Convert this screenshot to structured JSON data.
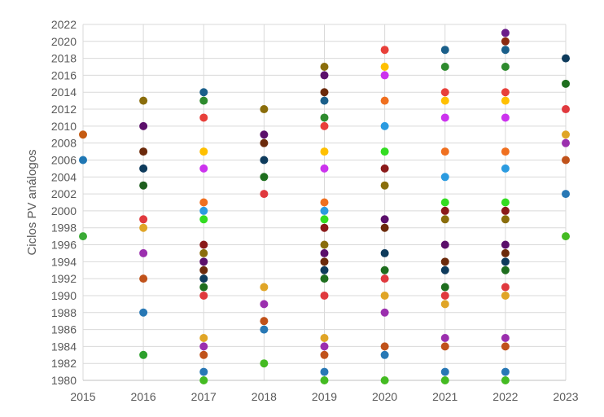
{
  "chart_data": {
    "type": "scatter",
    "title": "",
    "xlabel": "",
    "ylabel": "Ciclos PV análogos",
    "xlim": [
      2015,
      2023
    ],
    "ylim": [
      1980,
      2022
    ],
    "x_ticks": [
      "2015",
      "2016",
      "2017",
      "2018",
      "2019",
      "2020",
      "2021",
      "2022",
      "2023"
    ],
    "y_ticks": [
      "1980",
      "1982",
      "1984",
      "1986",
      "1988",
      "1990",
      "1992",
      "1994",
      "1996",
      "1998",
      "2000",
      "2002",
      "2004",
      "2006",
      "2008",
      "2010",
      "2012",
      "2014",
      "2016",
      "2018",
      "2020",
      "2022"
    ],
    "grid": true,
    "points": [
      {
        "x": 2015,
        "y": 2009,
        "color": "#c55a11"
      },
      {
        "x": 2015,
        "y": 2006,
        "color": "#1f77b4"
      },
      {
        "x": 2015,
        "y": 1997,
        "color": "#3aaa35"
      },
      {
        "x": 2016,
        "y": 2013,
        "color": "#8a6d0b"
      },
      {
        "x": 2016,
        "y": 2010,
        "color": "#5b0f6b"
      },
      {
        "x": 2016,
        "y": 2007,
        "color": "#6b2a0b"
      },
      {
        "x": 2016,
        "y": 2005,
        "color": "#0e3b5c"
      },
      {
        "x": 2016,
        "y": 2003,
        "color": "#1e5e1e"
      },
      {
        "x": 2016,
        "y": 1999,
        "color": "#e0393e"
      },
      {
        "x": 2016,
        "y": 1998,
        "color": "#e0a526"
      },
      {
        "x": 2016,
        "y": 1995,
        "color": "#9b2fae"
      },
      {
        "x": 2016,
        "y": 1992,
        "color": "#c0521a"
      },
      {
        "x": 2016,
        "y": 1988,
        "color": "#2878b5"
      },
      {
        "x": 2016,
        "y": 1983,
        "color": "#2ca02c"
      },
      {
        "x": 2017,
        "y": 2014,
        "color": "#1a5f8a"
      },
      {
        "x": 2017,
        "y": 2013,
        "color": "#2e8b2e"
      },
      {
        "x": 2017,
        "y": 2011,
        "color": "#e8403a"
      },
      {
        "x": 2017,
        "y": 2007,
        "color": "#ffc000"
      },
      {
        "x": 2017,
        "y": 2005,
        "color": "#cc33ee"
      },
      {
        "x": 2017,
        "y": 2001,
        "color": "#f07020"
      },
      {
        "x": 2017,
        "y": 2000,
        "color": "#2b9be0"
      },
      {
        "x": 2017,
        "y": 1999,
        "color": "#33dd22"
      },
      {
        "x": 2017,
        "y": 1996,
        "color": "#8b1a1a"
      },
      {
        "x": 2017,
        "y": 1995,
        "color": "#8a6d0b"
      },
      {
        "x": 2017,
        "y": 1994,
        "color": "#5b0f6b"
      },
      {
        "x": 2017,
        "y": 1993,
        "color": "#6b2a0b"
      },
      {
        "x": 2017,
        "y": 1992,
        "color": "#0e3b5c"
      },
      {
        "x": 2017,
        "y": 1991,
        "color": "#1e6e1e"
      },
      {
        "x": 2017,
        "y": 1990,
        "color": "#e0393e"
      },
      {
        "x": 2017,
        "y": 1985,
        "color": "#e0a526"
      },
      {
        "x": 2017,
        "y": 1984,
        "color": "#9b2fae"
      },
      {
        "x": 2017,
        "y": 1983,
        "color": "#c0521a"
      },
      {
        "x": 2017,
        "y": 1981,
        "color": "#2878b5"
      },
      {
        "x": 2017,
        "y": 1980,
        "color": "#44bb22"
      },
      {
        "x": 2018,
        "y": 2012,
        "color": "#8a6d0b"
      },
      {
        "x": 2018,
        "y": 2009,
        "color": "#5b0f6b"
      },
      {
        "x": 2018,
        "y": 2008,
        "color": "#6b2a0b"
      },
      {
        "x": 2018,
        "y": 2006,
        "color": "#0e3b5c"
      },
      {
        "x": 2018,
        "y": 2004,
        "color": "#1e6e1e"
      },
      {
        "x": 2018,
        "y": 2002,
        "color": "#e0393e"
      },
      {
        "x": 2018,
        "y": 1991,
        "color": "#e0a526"
      },
      {
        "x": 2018,
        "y": 1989,
        "color": "#9b2fae"
      },
      {
        "x": 2018,
        "y": 1987,
        "color": "#c0521a"
      },
      {
        "x": 2018,
        "y": 1986,
        "color": "#2878b5"
      },
      {
        "x": 2018,
        "y": 1982,
        "color": "#44bb22"
      },
      {
        "x": 2019,
        "y": 2017,
        "color": "#8a6d0b"
      },
      {
        "x": 2019,
        "y": 2016,
        "color": "#5b0f6b"
      },
      {
        "x": 2019,
        "y": 2014,
        "color": "#6b2a0b"
      },
      {
        "x": 2019,
        "y": 2013,
        "color": "#1a5f8a"
      },
      {
        "x": 2019,
        "y": 2011,
        "color": "#2e8b2e"
      },
      {
        "x": 2019,
        "y": 2010,
        "color": "#e8403a"
      },
      {
        "x": 2019,
        "y": 2007,
        "color": "#ffc000"
      },
      {
        "x": 2019,
        "y": 2005,
        "color": "#cc33ee"
      },
      {
        "x": 2019,
        "y": 2001,
        "color": "#f07020"
      },
      {
        "x": 2019,
        "y": 2000,
        "color": "#2b9be0"
      },
      {
        "x": 2019,
        "y": 1999,
        "color": "#33dd22"
      },
      {
        "x": 2019,
        "y": 1998,
        "color": "#8b1a1a"
      },
      {
        "x": 2019,
        "y": 1996,
        "color": "#8a6d0b"
      },
      {
        "x": 2019,
        "y": 1995,
        "color": "#5b0f6b"
      },
      {
        "x": 2019,
        "y": 1994,
        "color": "#6b2a0b"
      },
      {
        "x": 2019,
        "y": 1993,
        "color": "#0e3b5c"
      },
      {
        "x": 2019,
        "y": 1992,
        "color": "#1e6e1e"
      },
      {
        "x": 2019,
        "y": 1990,
        "color": "#e0393e"
      },
      {
        "x": 2019,
        "y": 1985,
        "color": "#e0a526"
      },
      {
        "x": 2019,
        "y": 1984,
        "color": "#9b2fae"
      },
      {
        "x": 2019,
        "y": 1983,
        "color": "#c0521a"
      },
      {
        "x": 2019,
        "y": 1981,
        "color": "#2878b5"
      },
      {
        "x": 2019,
        "y": 1980,
        "color": "#44bb22"
      },
      {
        "x": 2020,
        "y": 2019,
        "color": "#e8403a"
      },
      {
        "x": 2020,
        "y": 2017,
        "color": "#ffc000"
      },
      {
        "x": 2020,
        "y": 2016,
        "color": "#cc33ee"
      },
      {
        "x": 2020,
        "y": 2013,
        "color": "#f07020"
      },
      {
        "x": 2020,
        "y": 2010,
        "color": "#2b9be0"
      },
      {
        "x": 2020,
        "y": 2007,
        "color": "#33dd22"
      },
      {
        "x": 2020,
        "y": 2005,
        "color": "#8b1a1a"
      },
      {
        "x": 2020,
        "y": 2003,
        "color": "#8a6d0b"
      },
      {
        "x": 2020,
        "y": 1999,
        "color": "#5b0f6b"
      },
      {
        "x": 2020,
        "y": 1998,
        "color": "#6b2a0b"
      },
      {
        "x": 2020,
        "y": 1995,
        "color": "#0e3b5c"
      },
      {
        "x": 2020,
        "y": 1993,
        "color": "#1e6e1e"
      },
      {
        "x": 2020,
        "y": 1992,
        "color": "#e0393e"
      },
      {
        "x": 2020,
        "y": 1990,
        "color": "#e0a526"
      },
      {
        "x": 2020,
        "y": 1988,
        "color": "#9b2fae"
      },
      {
        "x": 2020,
        "y": 1984,
        "color": "#c0521a"
      },
      {
        "x": 2020,
        "y": 1983,
        "color": "#2878b5"
      },
      {
        "x": 2020,
        "y": 1980,
        "color": "#44bb22"
      },
      {
        "x": 2021,
        "y": 2019,
        "color": "#1a5f8a"
      },
      {
        "x": 2021,
        "y": 2017,
        "color": "#2e8b2e"
      },
      {
        "x": 2021,
        "y": 2014,
        "color": "#e8403a"
      },
      {
        "x": 2021,
        "y": 2013,
        "color": "#ffc000"
      },
      {
        "x": 2021,
        "y": 2011,
        "color": "#cc33ee"
      },
      {
        "x": 2021,
        "y": 2007,
        "color": "#f07020"
      },
      {
        "x": 2021,
        "y": 2004,
        "color": "#2b9be0"
      },
      {
        "x": 2021,
        "y": 2001,
        "color": "#33dd22"
      },
      {
        "x": 2021,
        "y": 2000,
        "color": "#8b1a1a"
      },
      {
        "x": 2021,
        "y": 1999,
        "color": "#8a6d0b"
      },
      {
        "x": 2021,
        "y": 1996,
        "color": "#5b0f6b"
      },
      {
        "x": 2021,
        "y": 1994,
        "color": "#6b2a0b"
      },
      {
        "x": 2021,
        "y": 1993,
        "color": "#0e3b5c"
      },
      {
        "x": 2021,
        "y": 1991,
        "color": "#1e6e1e"
      },
      {
        "x": 2021,
        "y": 1990,
        "color": "#e0393e"
      },
      {
        "x": 2021,
        "y": 1989,
        "color": "#e0a526"
      },
      {
        "x": 2021,
        "y": 1985,
        "color": "#9b2fae"
      },
      {
        "x": 2021,
        "y": 1984,
        "color": "#c0521a"
      },
      {
        "x": 2021,
        "y": 1981,
        "color": "#2878b5"
      },
      {
        "x": 2021,
        "y": 1980,
        "color": "#44bb22"
      },
      {
        "x": 2022,
        "y": 2021,
        "color": "#6a1b8a"
      },
      {
        "x": 2022,
        "y": 2020,
        "color": "#8b2a10"
      },
      {
        "x": 2022,
        "y": 2019,
        "color": "#1a5f8a"
      },
      {
        "x": 2022,
        "y": 2017,
        "color": "#2e8b2e"
      },
      {
        "x": 2022,
        "y": 2014,
        "color": "#e8403a"
      },
      {
        "x": 2022,
        "y": 2013,
        "color": "#ffc000"
      },
      {
        "x": 2022,
        "y": 2011,
        "color": "#cc33ee"
      },
      {
        "x": 2022,
        "y": 2007,
        "color": "#f07020"
      },
      {
        "x": 2022,
        "y": 2005,
        "color": "#2b9be0"
      },
      {
        "x": 2022,
        "y": 2001,
        "color": "#33dd22"
      },
      {
        "x": 2022,
        "y": 2000,
        "color": "#8b1a1a"
      },
      {
        "x": 2022,
        "y": 1999,
        "color": "#8a6d0b"
      },
      {
        "x": 2022,
        "y": 1996,
        "color": "#5b0f6b"
      },
      {
        "x": 2022,
        "y": 1995,
        "color": "#6b2a0b"
      },
      {
        "x": 2022,
        "y": 1994,
        "color": "#0e3b5c"
      },
      {
        "x": 2022,
        "y": 1993,
        "color": "#1e6e1e"
      },
      {
        "x": 2022,
        "y": 1991,
        "color": "#e0393e"
      },
      {
        "x": 2022,
        "y": 1990,
        "color": "#e0a526"
      },
      {
        "x": 2022,
        "y": 1985,
        "color": "#9b2fae"
      },
      {
        "x": 2022,
        "y": 1984,
        "color": "#c0521a"
      },
      {
        "x": 2022,
        "y": 1981,
        "color": "#2878b5"
      },
      {
        "x": 2022,
        "y": 1980,
        "color": "#44bb22"
      },
      {
        "x": 2023,
        "y": 2018,
        "color": "#0e3b5c"
      },
      {
        "x": 2023,
        "y": 2015,
        "color": "#1e6e1e"
      },
      {
        "x": 2023,
        "y": 2012,
        "color": "#e0393e"
      },
      {
        "x": 2023,
        "y": 2009,
        "color": "#e0a526"
      },
      {
        "x": 2023,
        "y": 2008,
        "color": "#9b2fae"
      },
      {
        "x": 2023,
        "y": 2006,
        "color": "#c0521a"
      },
      {
        "x": 2023,
        "y": 2002,
        "color": "#2878b5"
      },
      {
        "x": 2023,
        "y": 1997,
        "color": "#44bb22"
      }
    ]
  },
  "colors": {
    "grid": "#d9d9d9",
    "axis": "#bfbfbf",
    "text": "#595959"
  }
}
